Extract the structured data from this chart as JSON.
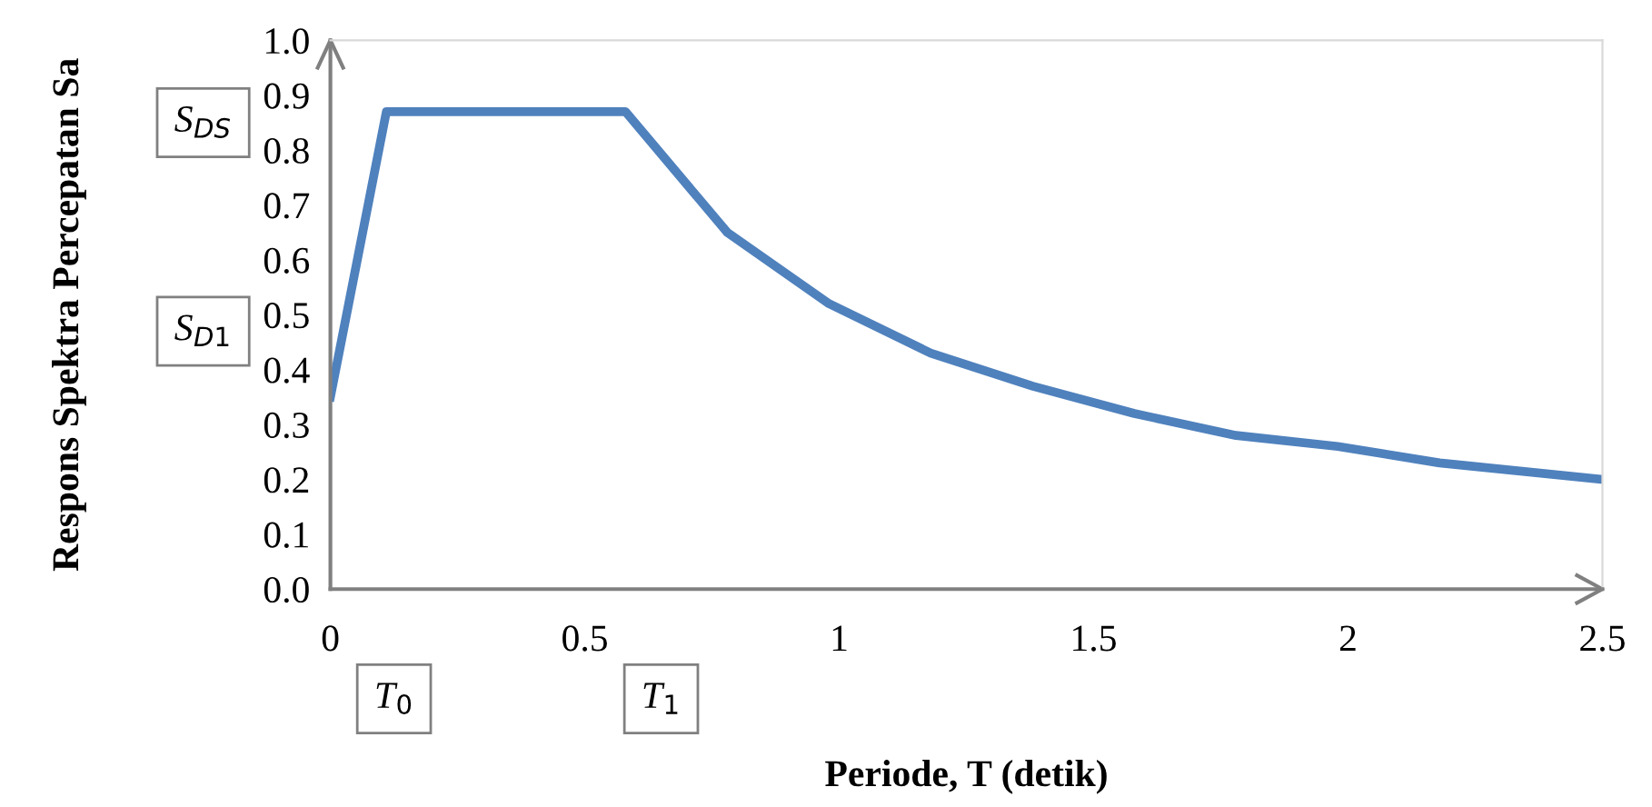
{
  "chart_data": {
    "type": "line",
    "xlabel": "Periode, T (detik)",
    "ylabel": "Respons Spektra Percepatan Sa",
    "x": [
      0,
      0.11,
      0.58,
      0.78,
      0.98,
      1.18,
      1.38,
      1.58,
      1.78,
      1.98,
      2.18,
      2.5
    ],
    "series": [
      {
        "color": "#4f81bd",
        "values": [
          0.35,
          0.87,
          0.87,
          0.65,
          0.52,
          0.43,
          0.37,
          0.32,
          0.28,
          0.26,
          0.23,
          0.2
        ]
      }
    ],
    "xlim": [
      0,
      2.5
    ],
    "ylim": [
      0,
      1.0
    ],
    "xticks": [
      0,
      0.5,
      1,
      1.5,
      2,
      2.5
    ],
    "yticks": [
      {
        "value": 0,
        "label": "0.0"
      },
      {
        "value": 0.1,
        "label": "0.1"
      },
      {
        "value": 0.2,
        "label": "0.2"
      },
      {
        "value": 0.3,
        "label": "0.3"
      },
      {
        "value": 0.4,
        "label": "0.4"
      },
      {
        "value": 0.5,
        "label": "0.5"
      },
      {
        "value": 0.6,
        "label": "0.6"
      },
      {
        "value": 0.7,
        "label": "0.7"
      },
      {
        "value": 0.8,
        "label": "0.8"
      },
      {
        "value": 0.9,
        "label": "0.9"
      },
      {
        "value": 1.0,
        "label": "1.0"
      }
    ],
    "annotations": [
      "S$_{DS}$",
      "S$_{D1}$",
      "T$_{0}$",
      "T$_{1}$"
    ],
    "grid": false,
    "legend": false,
    "marker": "none",
    "line_style": "solid"
  }
}
